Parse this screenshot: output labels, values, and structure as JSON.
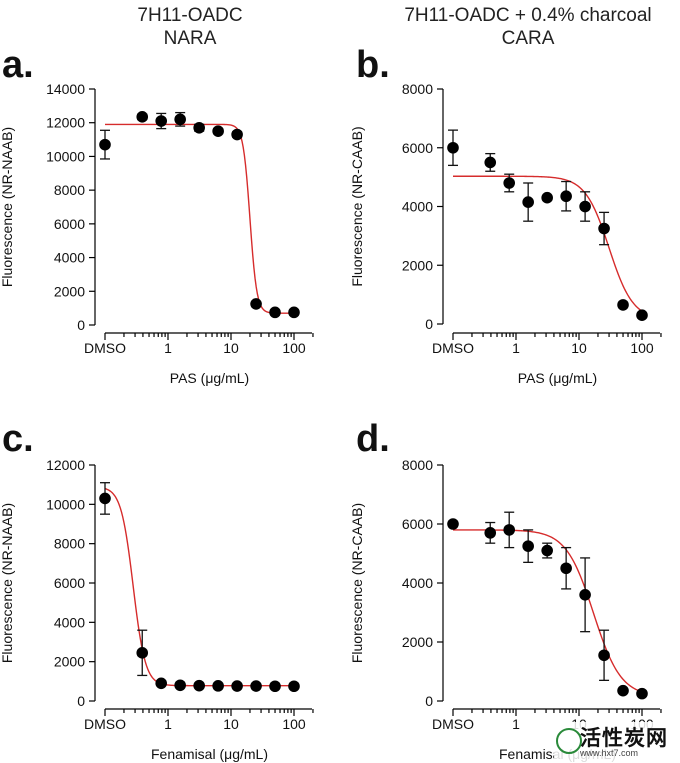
{
  "column_titles": [
    {
      "line1": "7H11-OADC",
      "line2": "NARA"
    },
    {
      "line1": "7H11-OADC + 0.4% charcoal",
      "line2": "CARA"
    }
  ],
  "watermark": {
    "main": "活性炭网",
    "url": "www.hxt7.com"
  },
  "chart_data": [
    {
      "panel": "a.",
      "type": "scatter",
      "xlabel": "PAS (μg/mL)",
      "ylabel": "Fluorescence (NR-NAAB)",
      "x_scale": "log",
      "xlim": [
        0.1,
        200
      ],
      "ylim": [
        0,
        14000
      ],
      "y_ticks": [
        0,
        2000,
        4000,
        6000,
        8000,
        10000,
        12000,
        14000
      ],
      "y_tick_labels": [
        "0",
        "2000",
        "4000",
        "6000",
        "8000",
        "10000",
        "12000",
        "14000"
      ],
      "x_ticks": [
        0.1,
        1,
        10,
        100
      ],
      "x_tick_labels": [
        "DMSO",
        "1",
        "10",
        "100"
      ],
      "points": [
        {
          "x": 0.1,
          "y": 10700,
          "err": 850
        },
        {
          "x": 0.39,
          "y": 12350,
          "err": 150
        },
        {
          "x": 0.78,
          "y": 12100,
          "err": 450
        },
        {
          "x": 1.56,
          "y": 12200,
          "err": 400
        },
        {
          "x": 3.125,
          "y": 11700,
          "err": 200
        },
        {
          "x": 6.25,
          "y": 11500,
          "err": 150
        },
        {
          "x": 12.5,
          "y": 11300,
          "err": 150
        },
        {
          "x": 25,
          "y": 1250,
          "err": 120
        },
        {
          "x": 50,
          "y": 750,
          "err": 80
        },
        {
          "x": 100,
          "y": 750,
          "err": 80
        }
      ],
      "fit": {
        "top": 11900,
        "bottom": 700,
        "ic50": 20,
        "hill": 8
      }
    },
    {
      "panel": "b.",
      "type": "scatter",
      "xlabel": "PAS (μg/mL)",
      "ylabel": "Fluorescence (NR-CAAB)",
      "x_scale": "log",
      "xlim": [
        0.1,
        200
      ],
      "ylim": [
        0,
        8000
      ],
      "y_ticks": [
        0,
        2000,
        4000,
        6000,
        8000
      ],
      "y_tick_labels": [
        "0",
        "2000",
        "4000",
        "6000",
        "8000"
      ],
      "x_ticks": [
        0.1,
        1,
        10,
        100
      ],
      "x_tick_labels": [
        "DMSO",
        "1",
        "10",
        "100"
      ],
      "points": [
        {
          "x": 0.1,
          "y": 6000,
          "err": 600
        },
        {
          "x": 0.39,
          "y": 5500,
          "err": 300
        },
        {
          "x": 0.78,
          "y": 4800,
          "err": 300
        },
        {
          "x": 1.56,
          "y": 4150,
          "err": 650
        },
        {
          "x": 3.125,
          "y": 4300,
          "err": 0
        },
        {
          "x": 6.25,
          "y": 4350,
          "err": 500
        },
        {
          "x": 12.5,
          "y": 4000,
          "err": 500
        },
        {
          "x": 25,
          "y": 3250,
          "err": 550
        },
        {
          "x": 50,
          "y": 650,
          "err": 0
        },
        {
          "x": 100,
          "y": 300,
          "err": 0
        }
      ],
      "fit": {
        "top": 5030,
        "bottom": 150,
        "ic50": 30,
        "hill": 2.3
      }
    },
    {
      "panel": "c.",
      "type": "scatter",
      "xlabel": "Fenamisal (μg/mL)",
      "ylabel": "Fluorescence (NR-NAAB)",
      "x_scale": "log",
      "xlim": [
        0.1,
        200
      ],
      "ylim": [
        0,
        12000
      ],
      "y_ticks": [
        0,
        2000,
        4000,
        6000,
        8000,
        10000,
        12000
      ],
      "y_tick_labels": [
        "0",
        "2000",
        "4000",
        "6000",
        "8000",
        "10000",
        "12000"
      ],
      "x_ticks": [
        0.1,
        1,
        10,
        100
      ],
      "x_tick_labels": [
        "DMSO",
        "1",
        "10",
        "100"
      ],
      "points": [
        {
          "x": 0.1,
          "y": 10300,
          "err": 800
        },
        {
          "x": 0.39,
          "y": 2450,
          "err": 1150
        },
        {
          "x": 0.78,
          "y": 900,
          "err": 100
        },
        {
          "x": 1.56,
          "y": 800,
          "err": 50
        },
        {
          "x": 3.125,
          "y": 780,
          "err": 50
        },
        {
          "x": 6.25,
          "y": 770,
          "err": 50
        },
        {
          "x": 12.5,
          "y": 760,
          "err": 50
        },
        {
          "x": 25,
          "y": 760,
          "err": 50
        },
        {
          "x": 50,
          "y": 750,
          "err": 50
        },
        {
          "x": 100,
          "y": 750,
          "err": 50
        }
      ],
      "fit": {
        "top": 10900,
        "bottom": 780,
        "ic50": 0.28,
        "hill": 4.5
      }
    },
    {
      "panel": "d.",
      "type": "scatter",
      "xlabel": "Fenamisal (μg/mL)",
      "ylabel": "Fluorescence (NR-CAAB)",
      "x_scale": "log",
      "xlim": [
        0.1,
        200
      ],
      "ylim": [
        0,
        8000
      ],
      "y_ticks": [
        0,
        2000,
        4000,
        6000,
        8000
      ],
      "y_tick_labels": [
        "0",
        "2000",
        "4000",
        "6000",
        "8000"
      ],
      "x_ticks": [
        0.1,
        1,
        10,
        100
      ],
      "x_tick_labels": [
        "DMSO",
        "1",
        "10",
        "100"
      ],
      "points": [
        {
          "x": 0.1,
          "y": 6000,
          "err": 0
        },
        {
          "x": 0.39,
          "y": 5700,
          "err": 350
        },
        {
          "x": 0.78,
          "y": 5800,
          "err": 600
        },
        {
          "x": 1.56,
          "y": 5250,
          "err": 550
        },
        {
          "x": 3.125,
          "y": 5100,
          "err": 250
        },
        {
          "x": 6.25,
          "y": 4500,
          "err": 700
        },
        {
          "x": 12.5,
          "y": 3600,
          "err": 1250
        },
        {
          "x": 25,
          "y": 1550,
          "err": 850
        },
        {
          "x": 50,
          "y": 350,
          "err": 0
        },
        {
          "x": 100,
          "y": 250,
          "err": 0
        }
      ],
      "fit": {
        "top": 5800,
        "bottom": 150,
        "ic50": 17,
        "hill": 2.0
      }
    }
  ]
}
